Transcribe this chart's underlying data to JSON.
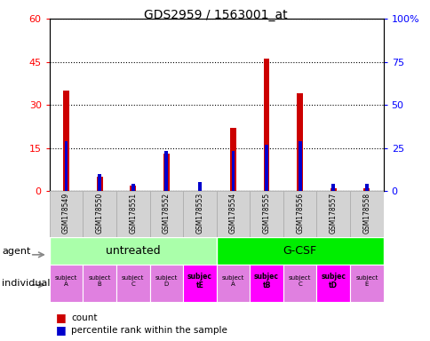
{
  "title": "GDS2959 / 1563001_at",
  "samples": [
    "GSM178549",
    "GSM178550",
    "GSM178551",
    "GSM178552",
    "GSM178553",
    "GSM178554",
    "GSM178555",
    "GSM178556",
    "GSM178557",
    "GSM178558"
  ],
  "count_values": [
    35,
    5,
    2,
    13,
    0,
    22,
    46,
    34,
    1,
    1
  ],
  "percentile_values": [
    29,
    10,
    4,
    23,
    5,
    23,
    27,
    29,
    4,
    4
  ],
  "ylim_left": [
    0,
    60
  ],
  "ylim_right": [
    0,
    100
  ],
  "yticks_left": [
    0,
    15,
    30,
    45,
    60
  ],
  "yticks_right": [
    0,
    25,
    50,
    75,
    100
  ],
  "groups": [
    {
      "label": "untreated",
      "start": 0,
      "end": 5,
      "color": "#aaffaa"
    },
    {
      "label": "G-CSF",
      "start": 5,
      "end": 10,
      "color": "#00ee00"
    }
  ],
  "individuals": [
    {
      "label": "subject\nA",
      "idx": 0,
      "bold": false
    },
    {
      "label": "subject\nB",
      "idx": 1,
      "bold": false
    },
    {
      "label": "subject\nC",
      "idx": 2,
      "bold": false
    },
    {
      "label": "subject\nD",
      "idx": 3,
      "bold": false
    },
    {
      "label": "subjec\ntE",
      "idx": 4,
      "bold": true
    },
    {
      "label": "subject\nA",
      "idx": 5,
      "bold": false
    },
    {
      "label": "subjec\ntB",
      "idx": 6,
      "bold": true
    },
    {
      "label": "subject\nC",
      "idx": 7,
      "bold": false
    },
    {
      "label": "subjec\ntD",
      "idx": 8,
      "bold": true
    },
    {
      "label": "subject\nE",
      "idx": 9,
      "bold": false
    }
  ],
  "ind_highlight": [
    4,
    6,
    8
  ],
  "ind_normal_color": "#e080e0",
  "ind_highlight_color": "#ff00ff",
  "bar_color_count": "#cc0000",
  "bar_color_percentile": "#0000cc",
  "bar_width": 0.18,
  "blue_bar_width": 0.1,
  "legend_count": "count",
  "legend_percentile": "percentile rank within the sample"
}
